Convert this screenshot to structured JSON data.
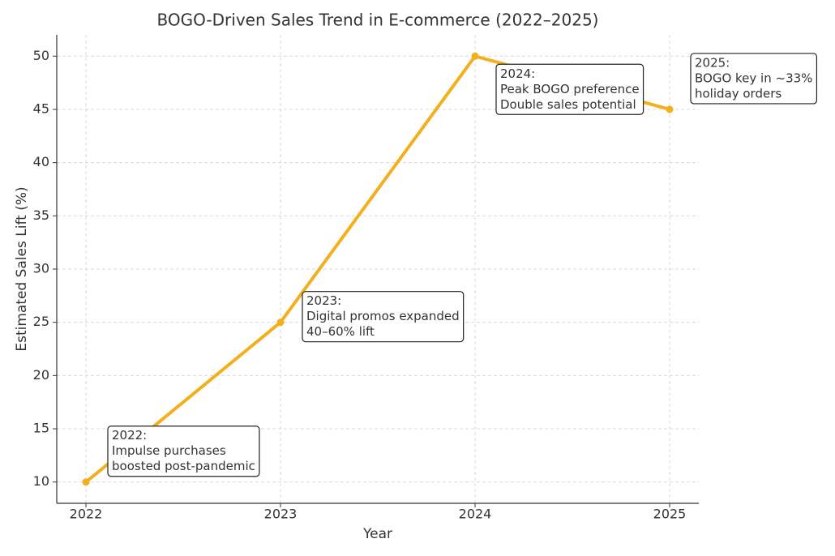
{
  "chart_data": {
    "type": "line",
    "title": "BOGO-Driven Sales Trend in E-commerce (2022–2025)",
    "x_label": "Year",
    "y_label": "Estimated Sales Lift (%)",
    "x": [
      2022,
      2023,
      2024,
      2025
    ],
    "series": [
      {
        "name": "Estimated Sales Lift",
        "color": "#f2b01e",
        "values": [
          10,
          25,
          50,
          45
        ]
      }
    ],
    "xlim": [
      2021.85,
      2025.15
    ],
    "xticks": [
      2022,
      2023,
      2024,
      2025
    ],
    "ylim": [
      8,
      52
    ],
    "yticks": [
      10,
      15,
      20,
      25,
      30,
      35,
      40,
      45,
      50
    ],
    "grid": true,
    "annotations": [
      {
        "x": 2022,
        "lines": [
          "2022:",
          "Impulse purchases",
          "boosted post-pandemic"
        ]
      },
      {
        "x": 2023,
        "lines": [
          "2023:",
          "Digital promos expanded",
          "40–60% lift"
        ]
      },
      {
        "x": 2024,
        "lines": [
          "2024:",
          "Peak BOGO preference",
          "Double sales potential"
        ]
      },
      {
        "x": 2025,
        "lines": [
          "2025:",
          "BOGO key in ~33%",
          "holiday orders"
        ]
      }
    ]
  }
}
